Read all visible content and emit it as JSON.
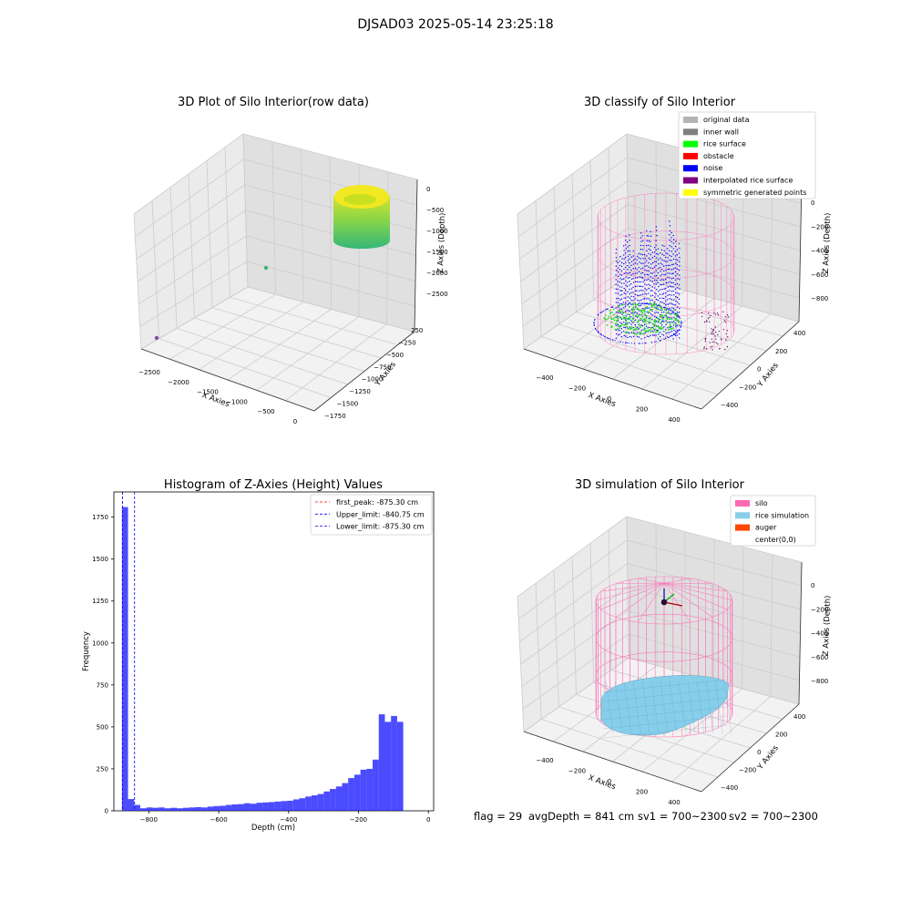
{
  "suptitle": "DJSAD03 2025-05-14 23:25:18",
  "footer": {
    "flag": "flag = 29",
    "avg": "avgDepth = 841 cm",
    "sv1": "sv1 = 700~2300",
    "sv2": "sv2 = 700~2300"
  },
  "colors": {
    "pane_left": "#ebebeb",
    "pane_right": "#e0e0e0",
    "pane_floor": "#f2f2f2",
    "grid": "#cccccc",
    "silo": "#ff69b4",
    "rice_sim": "#87ceeb",
    "rice_surface": "#00ff00",
    "noise": "#0000ff",
    "hist_bar": "#0000ff"
  },
  "chart_data": [
    {
      "type": "scatter",
      "subtype": "3d",
      "title": "3D Plot of Silo Interior(row data)",
      "xlabel": "X Axies",
      "ylabel": "Y Axies",
      "zlabel": "Z Axies (Depth)",
      "xticks": [
        "−2500",
        "−2000",
        "−1500",
        "−1000",
        "−500",
        "0"
      ],
      "yticks": [
        "250",
        "−250",
        "−500",
        "−750",
        "−1000",
        "−1250",
        "−1500",
        "−1750"
      ],
      "zticks": [
        "0",
        "−500",
        "−1000",
        "−1500",
        "−2000",
        "−2500"
      ],
      "colormap": "viridis",
      "outliers": [
        {
          "label": "x=-2550, y=-1750, z=-2550"
        },
        {
          "label": "x=-1450, y=-250, z=-800"
        }
      ]
    },
    {
      "type": "scatter",
      "subtype": "3d",
      "title": "3D classify of Silo Interior",
      "xlabel": "X Axies",
      "ylabel": "Y Axies",
      "zlabel": "Z Axies (Depth)",
      "xticks": [
        "−400",
        "−200",
        "0",
        "200",
        "400"
      ],
      "yticks": [
        "400",
        "200",
        "0",
        "−200",
        "−400"
      ],
      "zticks": [
        "0",
        "−200",
        "−400",
        "−600",
        "−800"
      ],
      "legend_position": "top-right",
      "legend": [
        {
          "name": "original data",
          "color": "#b3b3b3"
        },
        {
          "name": "inner wall",
          "color": "#808080"
        },
        {
          "name": "rice surface",
          "color": "#00ff00"
        },
        {
          "name": "obstacle",
          "color": "#ff0000"
        },
        {
          "name": "noise",
          "color": "#0000ff"
        },
        {
          "name": "interpolated rice surface",
          "color": "#800080"
        },
        {
          "name": "symmetric generated points",
          "color": "#ffff00"
        }
      ]
    },
    {
      "type": "bar",
      "subtype": "histogram",
      "title": "Histogram of Z-Axies (Height) Values",
      "xlabel": "Depth (cm)",
      "ylabel": "Frequency",
      "xlim": [
        -900,
        15
      ],
      "ylim": [
        0,
        1900
      ],
      "xticks": [
        -800,
        -600,
        -400,
        -200,
        0
      ],
      "yticks": [
        0,
        250,
        500,
        750,
        1000,
        1250,
        1500,
        1750
      ],
      "bin_start": -877,
      "bin_width": 17.5,
      "values": [
        1810,
        70,
        35,
        15,
        20,
        18,
        20,
        15,
        18,
        15,
        18,
        20,
        22,
        20,
        25,
        28,
        30,
        35,
        38,
        40,
        45,
        42,
        48,
        50,
        52,
        55,
        58,
        60,
        68,
        75,
        85,
        92,
        100,
        115,
        130,
        145,
        165,
        195,
        215,
        245,
        250,
        305,
        575,
        530,
        565,
        530
      ],
      "legend_position": "top-right",
      "lines": [
        {
          "label": "first_peak: -875.30 cm",
          "x": -875.3,
          "color": "#ff0000"
        },
        {
          "label": "Upper_limit: -840.75 cm",
          "x": -840.75,
          "color": "#0000ff"
        },
        {
          "label": "Lower_limit: -875.30 cm",
          "x": -875.3,
          "color": "#0000ff"
        }
      ]
    },
    {
      "type": "scatter",
      "subtype": "3d-surface",
      "title": "3D simulation of Silo Interior",
      "xlabel": "X Axies",
      "ylabel": "Y Axies",
      "zlabel": "Z Axies (Depth)",
      "xticks": [
        "−400",
        "−200",
        "0",
        "200",
        "400"
      ],
      "yticks": [
        "400",
        "200",
        "0",
        "−200",
        "−400"
      ],
      "zticks": [
        "0",
        "−200",
        "−400",
        "−600",
        "−800"
      ],
      "legend_position": "top-right",
      "legend": [
        {
          "name": "silo",
          "color": "#ff69b4"
        },
        {
          "name": "rice simulation",
          "color": "#87ceeb"
        },
        {
          "name": "auger",
          "color": "#ff4500"
        },
        {
          "name": "center(0,0)",
          "color": "none"
        }
      ]
    }
  ]
}
